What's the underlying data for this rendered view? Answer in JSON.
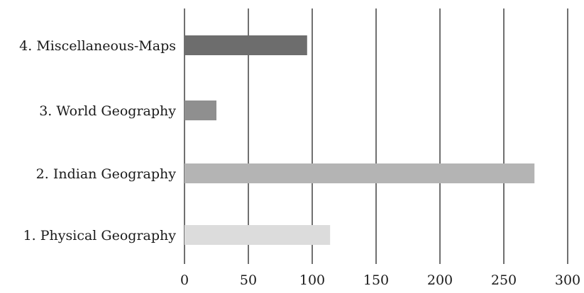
{
  "chart_data": {
    "type": "bar",
    "orientation": "horizontal",
    "title": "",
    "xlabel": "",
    "ylabel": "",
    "categories": [
      "4. Miscellaneous-Maps",
      "3. World Geography",
      "2. Indian Geography",
      "1. Physical Geography"
    ],
    "values": [
      96,
      25,
      274,
      114
    ],
    "bar_colors": [
      "#6d6d6d",
      "#8f8f8f",
      "#b4b4b4",
      "#dcdcdc"
    ],
    "xlim": [
      0,
      300
    ],
    "xticks": [
      0,
      50,
      100,
      150,
      200,
      250,
      300
    ],
    "xtick_labels": [
      "0",
      "50",
      "100",
      "150",
      "200",
      "250",
      "300"
    ],
    "grid": "vertical",
    "legend": "none"
  }
}
